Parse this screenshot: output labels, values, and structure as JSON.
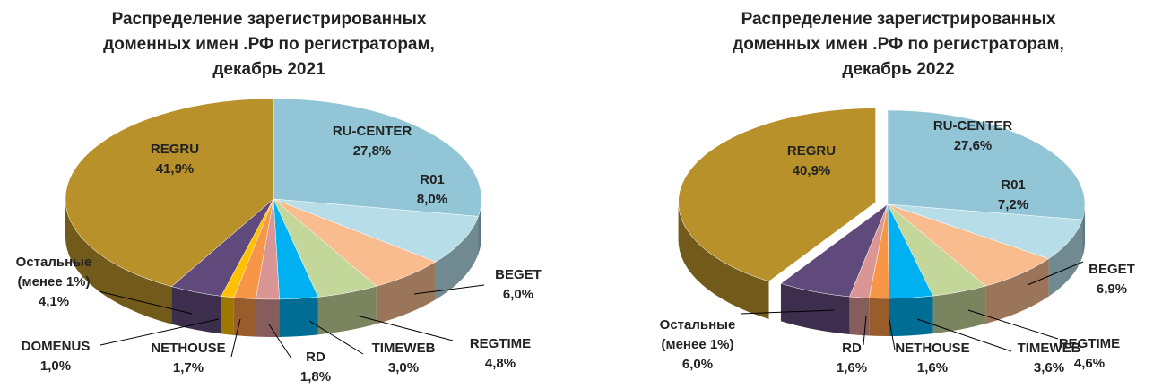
{
  "chart_data": [
    {
      "type": "pie",
      "title": "Распределение зарегистрированных доменных имен .РФ по регистраторам, декабрь 2021",
      "categories": [
        "RU-CENTER",
        "R01",
        "BEGET",
        "REGTIME",
        "TIMEWEB",
        "RD",
        "NETHOUSE",
        "DOMENUS",
        "Остальные (менее 1%)",
        "REGRU"
      ],
      "values": [
        27.8,
        8.0,
        6.0,
        4.8,
        3.0,
        1.8,
        1.7,
        1.0,
        4.1,
        41.9
      ],
      "value_labels": [
        "27,8%",
        "8,0%",
        "6,0%",
        "4,8%",
        "3,0%",
        "1,8%",
        "1,7%",
        "1,0%",
        "4,1%",
        "41,9%"
      ],
      "colors": [
        "#92c5d6",
        "#b7dde8",
        "#f8bc8f",
        "#c4d79b",
        "#00b0f0",
        "#d99694",
        "#f79646",
        "#ffc000",
        "#604a7b",
        "#b8912a"
      ]
    },
    {
      "type": "pie",
      "title": "Распределение зарегистрированных доменных имен .РФ по регистраторам, декабрь 2022",
      "categories": [
        "RU-CENTER",
        "R01",
        "BEGET",
        "REGTIME",
        "TIMEWEB",
        "NETHOUSE",
        "RD",
        "Остальные (менее 1%)",
        "REGRU"
      ],
      "values": [
        27.6,
        7.2,
        6.9,
        4.6,
        3.6,
        1.6,
        1.6,
        6.0,
        40.9
      ],
      "value_labels": [
        "27,6%",
        "7,2%",
        "6,9%",
        "4,6%",
        "3,6%",
        "1,6%",
        "1,6%",
        "6,0%",
        "40,9%"
      ],
      "colors": [
        "#92c5d6",
        "#b7dde8",
        "#f8bc8f",
        "#c4d79b",
        "#00b0f0",
        "#f79646",
        "#d99694",
        "#604a7b",
        "#b8912a"
      ],
      "exploded": [
        "REGRU"
      ]
    }
  ]
}
